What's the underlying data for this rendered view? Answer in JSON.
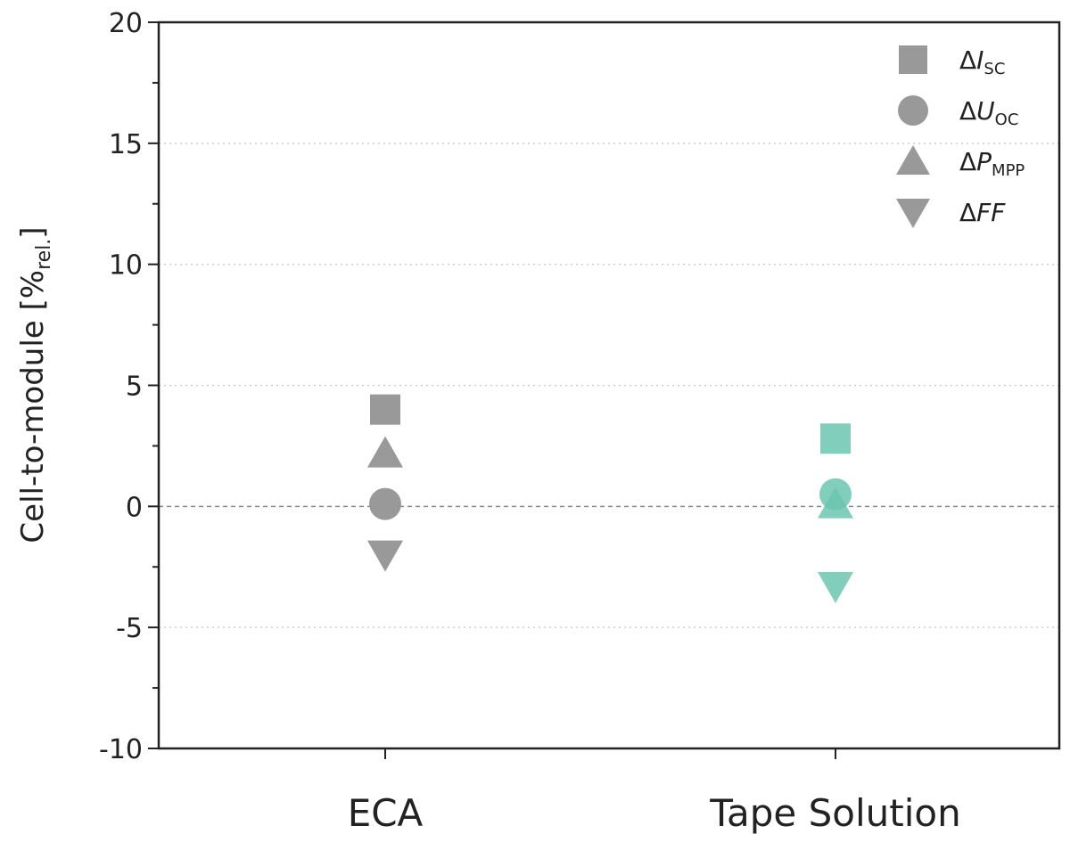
{
  "chart_data": {
    "type": "scatter",
    "title": "",
    "xlabel": "",
    "ylabel": {
      "main": "Cell-to-module [%",
      "sub": "rel.",
      "close": "]"
    },
    "categories": [
      "ECA",
      "Tape Solution"
    ],
    "ylim": [
      -10,
      20
    ],
    "yticks": [
      "-10",
      "-5",
      "0",
      "5",
      "10",
      "15",
      "20"
    ],
    "grid": "horizontal-dotted",
    "zero_line": "dashed",
    "legend_position": "top-right",
    "category_colors": [
      "#999999",
      "#6cc6b0"
    ],
    "series": [
      {
        "name": "ΔISC",
        "prefix": "Δ",
        "symbol": "I",
        "sub": "SC",
        "marker": "square",
        "values": [
          4.0,
          2.8
        ]
      },
      {
        "name": "ΔUOC",
        "prefix": "Δ",
        "symbol": "U",
        "sub": "OC",
        "marker": "circle",
        "values": [
          0.1,
          0.5
        ]
      },
      {
        "name": "ΔPMPP",
        "prefix": "Δ",
        "symbol": "P",
        "sub": "MPP",
        "marker": "triangle-up",
        "values": [
          2.2,
          0.1
        ]
      },
      {
        "name": "ΔFF",
        "prefix": "Δ",
        "symbol": "FF",
        "sub": "",
        "marker": "triangle-down",
        "values": [
          -2.0,
          -3.3
        ]
      }
    ],
    "legend_color": "#999999"
  }
}
